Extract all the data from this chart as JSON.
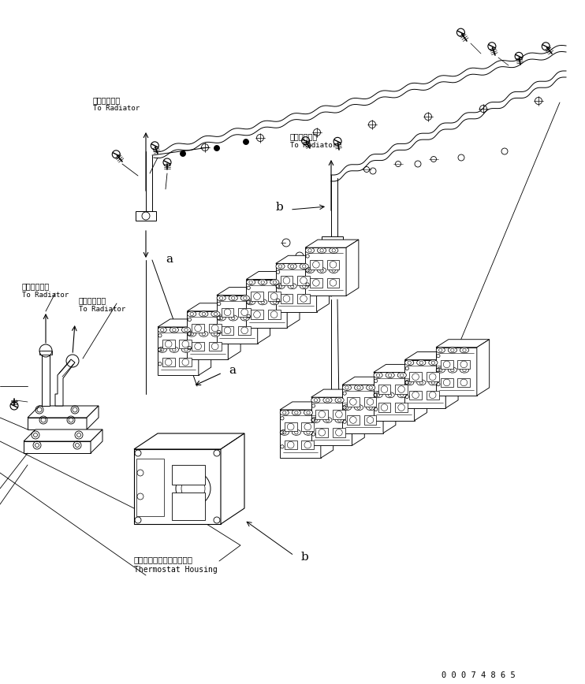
{
  "bg_color": "#ffffff",
  "line_color": "#000000",
  "part_number": "0 0 0 7 4 8 6 5",
  "labels": {
    "radiator_jp": "ラジエータへ",
    "radiator_en": "To Radiator",
    "thermostat_jp": "サーモスタットハウジング",
    "thermostat_en": "Thermostat Housing",
    "label_a": "a",
    "label_b": "b"
  },
  "figsize": [
    7.42,
    8.68
  ],
  "dpi": 100
}
